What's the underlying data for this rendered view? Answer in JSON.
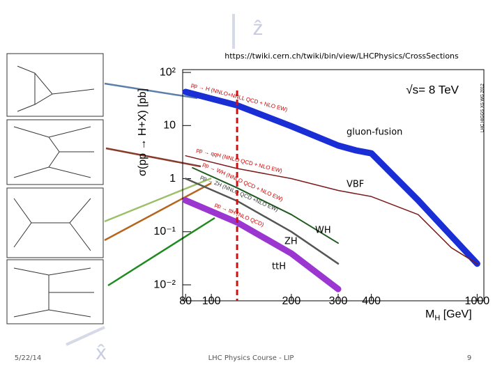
{
  "chart_data": {
    "type": "line",
    "title": "https://twiki.cern.ch/twiki/bin/view/LHCPhysics/CrossSections",
    "subtitle": "√s= 8 TeV",
    "source_note": "LHC HIGGS XS WG 2012",
    "x_label": "M",
    "x_label_sub": "H",
    "x_label_unit": " [GeV]",
    "y_label": "σ(pp → H+X) [pb]",
    "xscale": "log",
    "yscale": "log",
    "xlim": [
      78,
      1060
    ],
    "ylim": [
      0.005,
      113
    ],
    "xticks": [
      80,
      100,
      200,
      300,
      400,
      1000
    ],
    "yticks": [
      {
        "value": 100,
        "label": "10²"
      },
      10,
      1,
      {
        "value": 0.1,
        "label": "10⁻¹"
      },
      {
        "value": 0.01,
        "label": "10⁻²"
      }
    ],
    "reference_x": 125,
    "series": [
      {
        "name": "gluon-fusion",
        "curve_label": "pp → H (NNLO+NNLL QCD + NLO EW)",
        "color": "#1a2ed6",
        "x": [
          80,
          125,
          200,
          300,
          350,
          400,
          600,
          800,
          1000
        ],
        "values": [
          43,
          24,
          9.7,
          4.2,
          3.4,
          3.0,
          0.39,
          0.083,
          0.025
        ]
      },
      {
        "name": "VBF",
        "curve_label": "pp → qqH (NNLO QCD + NLO EW)",
        "color": "#7a1a1a",
        "x": [
          80,
          125,
          200,
          300,
          400,
          600,
          800,
          1000
        ],
        "values": [
          2.7,
          1.55,
          1.0,
          0.6,
          0.46,
          0.21,
          0.05,
          0.025
        ]
      },
      {
        "name": "WH",
        "curve_label": "pp → WH (NNLO QCD + NLO EW)",
        "color": "#1f5a1f",
        "x": [
          85,
          125,
          200,
          300
        ],
        "values": [
          1.6,
          0.67,
          0.21,
          0.061
        ]
      },
      {
        "name": "ZH",
        "curve_label": "pp → ZH (NNLO QCD +NLO EW)",
        "color": "#555555",
        "x": [
          80,
          125,
          200,
          300
        ],
        "values": [
          1.0,
          0.38,
          0.1,
          0.025
        ]
      },
      {
        "name": "ttH",
        "curve_label": "pp → ttH (NLO QCD)",
        "color": "#9b36d0",
        "x": [
          80,
          125,
          200,
          300
        ],
        "values": [
          0.39,
          0.15,
          0.039,
          0.0083
        ]
      }
    ]
  },
  "background_labels": [
    "ẑ",
    "x̂"
  ],
  "footer": {
    "date": "5/22/14",
    "course": "LHC Physics Course - LIP",
    "page": "9"
  }
}
